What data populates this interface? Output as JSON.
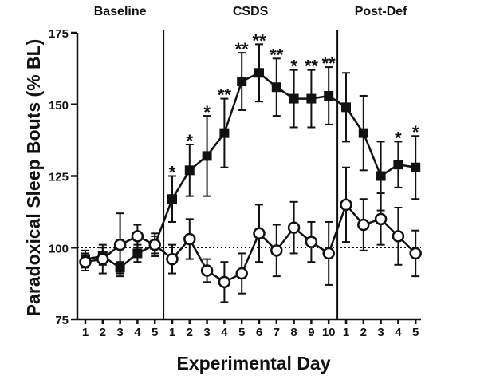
{
  "chart_data": {
    "type": "line",
    "title": "",
    "xlabel": "Experimental Day",
    "ylabel": "Paradoxical Sleep Bouts (% BL)",
    "ylim": [
      75,
      175
    ],
    "yticks": [
      75,
      100,
      125,
      150,
      175
    ],
    "reference_line": 100,
    "phases": [
      {
        "name": "Baseline",
        "days": [
          "1",
          "2",
          "3",
          "4",
          "5"
        ]
      },
      {
        "name": "CSDS",
        "days": [
          "1",
          "2",
          "3",
          "4",
          "5",
          "6",
          "7",
          "8",
          "9",
          "10"
        ]
      },
      {
        "name": "Post-Def",
        "days": [
          "1",
          "2",
          "3",
          "4",
          "5"
        ]
      }
    ],
    "series": [
      {
        "name": "Filled squares",
        "marker": "square",
        "values": [
          96,
          97,
          93,
          98,
          101,
          117,
          127,
          132,
          140,
          158,
          161,
          156,
          152,
          152,
          153,
          149,
          140,
          125,
          129,
          128
        ],
        "errors": [
          3,
          3,
          2,
          3,
          3,
          8,
          9,
          14,
          12,
          10,
          10,
          10,
          10,
          10,
          10,
          12,
          13,
          12,
          8,
          11
        ],
        "significance": [
          "",
          "",
          "",
          "",
          "",
          "*",
          "*",
          "*",
          "**",
          "**",
          "**",
          "**",
          "*",
          "**",
          "**",
          "",
          "",
          "",
          "*",
          "*"
        ]
      },
      {
        "name": "Open circles",
        "marker": "circle",
        "values": [
          95,
          96,
          101,
          104,
          101,
          96,
          103,
          92,
          88,
          91,
          105,
          99,
          107,
          102,
          98,
          115,
          108,
          110,
          104,
          98
        ],
        "errors": [
          3,
          5,
          11,
          4,
          4,
          5,
          7,
          4,
          7,
          7,
          10,
          9,
          9,
          7,
          11,
          13,
          9,
          9,
          10,
          8
        ]
      }
    ]
  }
}
